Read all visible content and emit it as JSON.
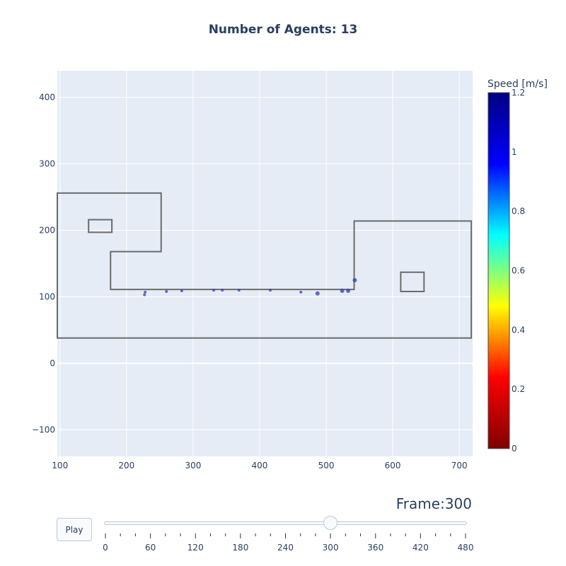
{
  "title": "Number of Agents: 13",
  "frame": {
    "prefix": "Frame:",
    "value": "300"
  },
  "play_label": "Play",
  "slider": {
    "min": 0,
    "max": 480,
    "value": 300,
    "ticks": [
      "0",
      "60",
      "120",
      "180",
      "240",
      "300",
      "360",
      "420",
      "480"
    ]
  },
  "colorbar": {
    "title": "Speed [m/s]",
    "min": 0,
    "max": 1.2,
    "tick_values": [
      0,
      0.2,
      0.4,
      0.6,
      0.8,
      1,
      1.2
    ],
    "tick_labels": [
      "0",
      "0.2",
      "0.4",
      "0.6",
      "0.8",
      "1",
      "1.2"
    ],
    "colorscale": [
      "#7f0000",
      "#ff0000",
      "#ffff00",
      "#00ffff",
      "#0000ff",
      "#000080"
    ]
  },
  "colors": {
    "plot_bg": "#e5ecf6",
    "grid": "#ffffff",
    "geometry": "#6b6b6b",
    "agent": "#2f3fae"
  },
  "chart_data": {
    "type": "scatter",
    "title": "Number of Agents: 13",
    "xlim": [
      96,
      720
    ],
    "ylim": [
      -140,
      440
    ],
    "x_ticks": [
      "100",
      "200",
      "300",
      "400",
      "500",
      "600",
      "700"
    ],
    "x_tick_values": [
      100,
      200,
      300,
      400,
      500,
      600,
      700
    ],
    "y_ticks": [
      "−100",
      "0",
      "100",
      "200",
      "300",
      "400"
    ],
    "y_tick_values": [
      -100,
      0,
      100,
      200,
      300,
      400
    ],
    "grid": true,
    "geometry": [
      {
        "name": "outer-boundary",
        "points": [
          [
            96,
            256
          ],
          [
            252,
            256
          ],
          [
            252,
            168
          ],
          [
            176,
            168
          ],
          [
            176,
            111
          ],
          [
            542,
            111
          ],
          [
            542,
            214
          ],
          [
            718,
            214
          ],
          [
            718,
            38
          ],
          [
            96,
            38
          ]
        ]
      },
      {
        "name": "obstacle-left",
        "points": [
          [
            143,
            216
          ],
          [
            178,
            216
          ],
          [
            178,
            197
          ],
          [
            143,
            197
          ]
        ]
      },
      {
        "name": "obstacle-right",
        "points": [
          [
            612,
            137
          ],
          [
            647,
            137
          ],
          [
            647,
            108
          ],
          [
            612,
            108
          ]
        ]
      }
    ],
    "agents": [
      {
        "x": 228,
        "y": 107,
        "speed": 0.95
      },
      {
        "x": 227,
        "y": 103,
        "speed": 0.95
      },
      {
        "x": 260,
        "y": 108,
        "speed": 0.95
      },
      {
        "x": 283,
        "y": 109,
        "speed": 0.95
      },
      {
        "x": 331,
        "y": 110,
        "speed": 0.95
      },
      {
        "x": 344,
        "y": 110,
        "speed": 0.95
      },
      {
        "x": 369,
        "y": 110,
        "speed": 0.95
      },
      {
        "x": 416,
        "y": 110,
        "speed": 0.95
      },
      {
        "x": 462,
        "y": 107,
        "speed": 0.95
      },
      {
        "x": 487,
        "y": 105,
        "speed": 1.0
      },
      {
        "x": 524,
        "y": 109,
        "speed": 1.0
      },
      {
        "x": 533,
        "y": 109,
        "speed": 1.0
      },
      {
        "x": 543,
        "y": 125,
        "speed": 1.0
      }
    ]
  }
}
